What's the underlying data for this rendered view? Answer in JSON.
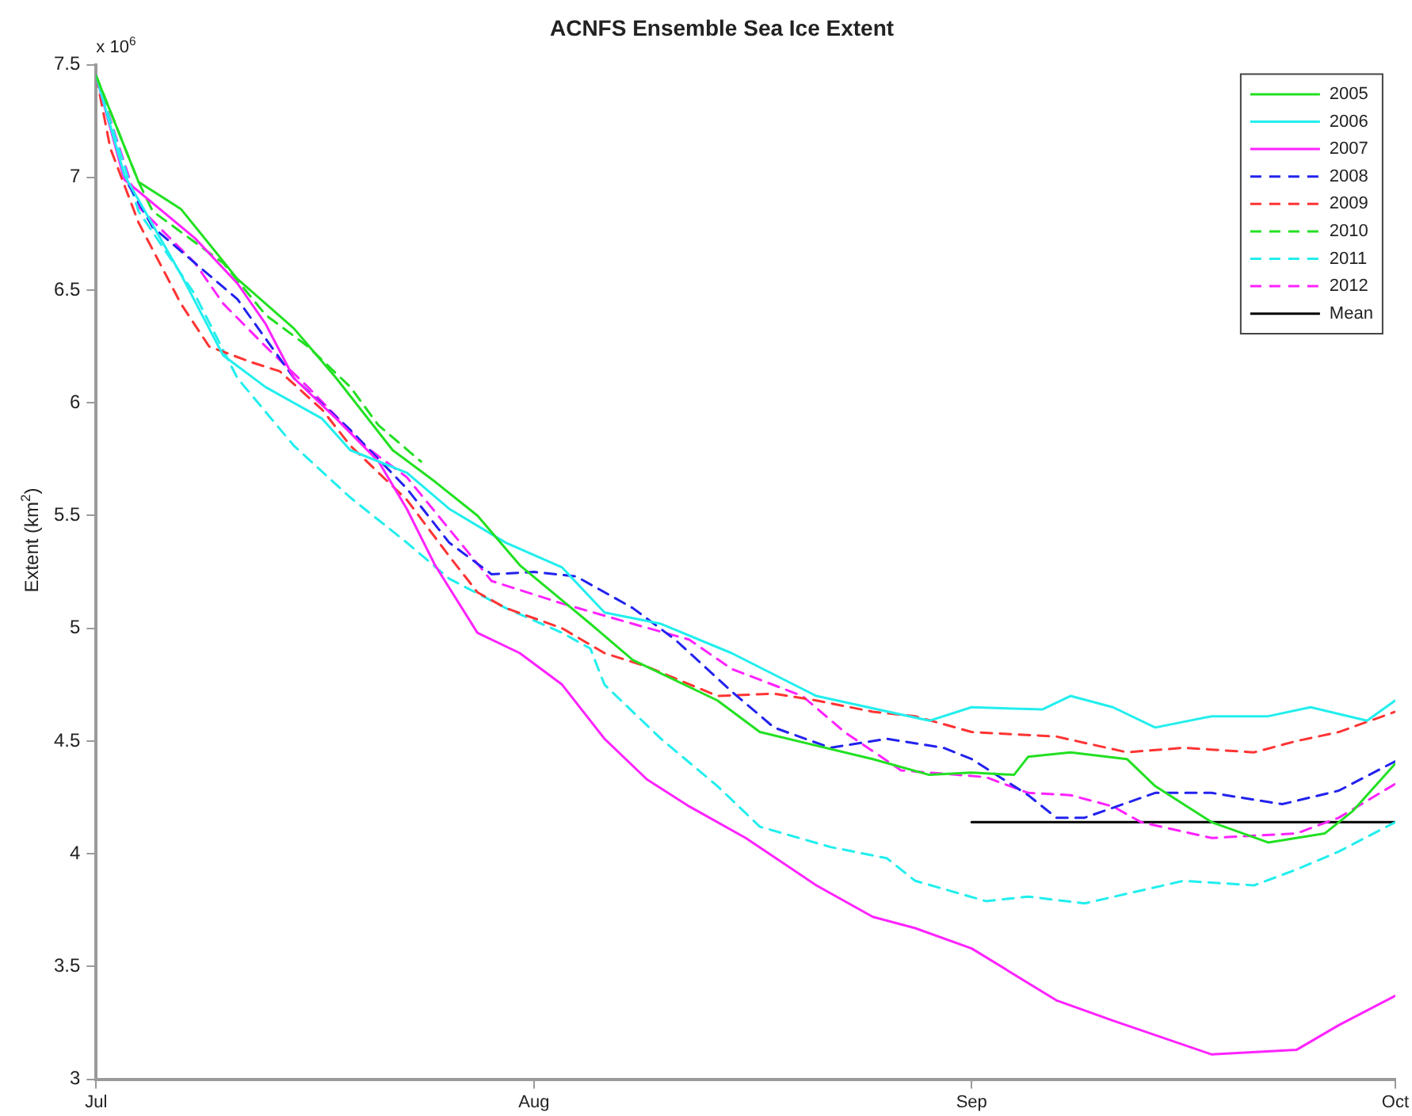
{
  "chart_data": {
    "type": "line",
    "title": "ACNFS Ensemble Sea Ice Extent",
    "ylabel": "Extent (km$^{2}$)",
    "annotations": [
      "x 10$^{6}$"
    ],
    "xlim": [
      "--07-01",
      "--10-01"
    ],
    "xticks": [
      {
        "value": "--07-01",
        "label": "Jul"
      },
      {
        "value": "--08-01",
        "label": "Aug"
      },
      {
        "value": "--09-01",
        "label": "Sep"
      },
      {
        "value": "--10-01",
        "label": "Oct"
      }
    ],
    "ylim": [
      3,
      7.5
    ],
    "yticks": [
      3,
      3.5,
      4,
      4.5,
      5,
      5.5,
      6,
      6.5,
      7,
      7.5
    ],
    "legend": "top right",
    "marker": "none",
    "series": [
      {
        "name": "2005",
        "color": "#22e022",
        "line_style": "solid",
        "x": [
          "--07-01",
          "--07-04",
          "--07-07",
          "--07-11",
          "--07-15",
          "--07-18",
          "--07-22",
          "--07-25",
          "--07-28",
          "--07-31",
          "--08-05",
          "--08-08",
          "--08-14",
          "--08-17",
          "--08-25",
          "--08-29",
          "--09-01",
          "--09-04",
          "--09-05",
          "--09-08",
          "--09-12",
          "--09-14",
          "--09-18",
          "--09-22",
          "--09-26",
          "--09-28",
          "--10-01"
        ],
        "values": [
          7.45,
          6.98,
          6.86,
          6.55,
          6.33,
          6.11,
          5.79,
          5.65,
          5.5,
          5.28,
          5.02,
          4.86,
          4.68,
          4.54,
          4.42,
          4.35,
          4.36,
          4.35,
          4.43,
          4.45,
          4.42,
          4.3,
          4.14,
          4.05,
          4.09,
          4.19,
          4.4
        ]
      },
      {
        "name": "2006",
        "color": "#22eeee",
        "line_style": "solid",
        "x": [
          "--07-01",
          "--07-03",
          "--07-07",
          "--07-10",
          "--07-13",
          "--07-17",
          "--07-19",
          "--07-23",
          "--07-26",
          "--07-30",
          "--08-03",
          "--08-06",
          "--08-10",
          "--08-15",
          "--08-21",
          "--08-29",
          "--09-01",
          "--09-06",
          "--09-08",
          "--09-11",
          "--09-14",
          "--09-18",
          "--09-22",
          "--09-25",
          "--09-29",
          "--10-01"
        ],
        "values": [
          7.45,
          7.01,
          6.57,
          6.21,
          6.07,
          5.93,
          5.79,
          5.69,
          5.53,
          5.38,
          5.27,
          5.07,
          5.02,
          4.89,
          4.7,
          4.59,
          4.65,
          4.64,
          4.7,
          4.65,
          4.56,
          4.61,
          4.61,
          4.65,
          4.59,
          4.68
        ]
      },
      {
        "name": "2007",
        "color": "#ff22ff",
        "line_style": "solid",
        "x": [
          "--07-01",
          "--07-03",
          "--07-08",
          "--07-11",
          "--07-13",
          "--07-15",
          "--07-18",
          "--07-21",
          "--07-23",
          "--07-25",
          "--07-28",
          "--07-31",
          "--08-03",
          "--08-06",
          "--08-09",
          "--08-12",
          "--08-16",
          "--08-21",
          "--08-25",
          "--08-28",
          "--09-01",
          "--09-07",
          "--09-11",
          "--09-18",
          "--09-24",
          "--09-27",
          "--10-01"
        ],
        "values": [
          7.45,
          6.99,
          6.73,
          6.53,
          6.35,
          6.11,
          5.93,
          5.74,
          5.53,
          5.28,
          4.98,
          4.89,
          4.75,
          4.51,
          4.33,
          4.21,
          4.07,
          3.86,
          3.72,
          3.67,
          3.58,
          3.35,
          3.26,
          3.11,
          3.13,
          3.24,
          3.37
        ]
      },
      {
        "name": "2008",
        "color": "#2222ee",
        "line_style": "dashed",
        "x": [
          "--07-01",
          "--07-03",
          "--07-05",
          "--07-11",
          "--07-15",
          "--07-19",
          "--07-23",
          "--07-26",
          "--07-29",
          "--08-01",
          "--08-04",
          "--08-08",
          "--08-11",
          "--08-15",
          "--08-18",
          "--08-22",
          "--08-26",
          "--08-30",
          "--09-01",
          "--09-05",
          "--09-07",
          "--09-09",
          "--09-14",
          "--09-18",
          "--09-23",
          "--09-27",
          "--10-01"
        ],
        "values": [
          7.45,
          7.0,
          6.78,
          6.46,
          6.11,
          5.88,
          5.62,
          5.38,
          5.24,
          5.25,
          5.23,
          5.09,
          4.95,
          4.72,
          4.56,
          4.47,
          4.51,
          4.47,
          4.42,
          4.26,
          4.16,
          4.16,
          4.27,
          4.27,
          4.22,
          4.28,
          4.41
        ]
      },
      {
        "name": "2009",
        "color": "#ff3333",
        "line_style": "dashed",
        "x": [
          "--07-01",
          "--07-02",
          "--07-04",
          "--07-07",
          "--07-09",
          "--07-12",
          "--07-14",
          "--07-17",
          "--07-19",
          "--07-23",
          "--07-26",
          "--07-28",
          "--07-30",
          "--08-03",
          "--08-06",
          "--08-09",
          "--08-14",
          "--08-18",
          "--08-21",
          "--08-25",
          "--08-28",
          "--09-01",
          "--09-07",
          "--09-12",
          "--09-16",
          "--09-21",
          "--09-24",
          "--09-27",
          "--10-01"
        ],
        "values": [
          7.45,
          7.13,
          6.8,
          6.44,
          6.25,
          6.18,
          6.14,
          5.97,
          5.81,
          5.57,
          5.32,
          5.16,
          5.09,
          5.0,
          4.89,
          4.83,
          4.7,
          4.71,
          4.68,
          4.63,
          4.61,
          4.54,
          4.52,
          4.45,
          4.47,
          4.45,
          4.5,
          4.54,
          4.63
        ]
      },
      {
        "name": "2010",
        "color": "#22e022",
        "line_style": "dashed",
        "x": [
          "--07-01",
          "--07-04",
          "--07-05",
          "--07-10",
          "--07-13",
          "--07-16",
          "--07-19",
          "--07-21",
          "--07-24"
        ],
        "values": [
          7.45,
          6.98,
          6.85,
          6.62,
          6.39,
          6.25,
          6.07,
          5.9,
          5.74
        ]
      },
      {
        "name": "2011",
        "color": "#22eeee",
        "line_style": "dashed",
        "x": [
          "--07-01",
          "--07-04",
          "--07-08",
          "--07-11",
          "--07-15",
          "--07-19",
          "--07-23",
          "--07-26",
          "--07-30",
          "--08-03",
          "--08-05",
          "--08-06",
          "--08-10",
          "--08-14",
          "--08-17",
          "--08-22",
          "--08-26",
          "--08-28",
          "--09-02",
          "--09-05",
          "--09-09",
          "--09-16",
          "--09-21",
          "--09-24",
          "--09-27",
          "--10-01"
        ],
        "values": [
          7.45,
          6.85,
          6.48,
          6.11,
          5.81,
          5.58,
          5.38,
          5.22,
          5.09,
          4.98,
          4.91,
          4.75,
          4.51,
          4.3,
          4.12,
          4.03,
          3.98,
          3.88,
          3.79,
          3.81,
          3.78,
          3.88,
          3.86,
          3.93,
          4.01,
          4.14
        ]
      },
      {
        "name": "2012",
        "color": "#ff22ff",
        "line_style": "dashed",
        "x": [
          "--07-01",
          "--07-04",
          "--07-08",
          "--07-10",
          "--07-13",
          "--07-16",
          "--07-20",
          "--07-23",
          "--07-26",
          "--07-29",
          "--08-03",
          "--08-08",
          "--08-12",
          "--08-15",
          "--08-20",
          "--08-23",
          "--08-27",
          "--08-31",
          "--09-02",
          "--09-05",
          "--09-08",
          "--09-11",
          "--09-13",
          "--09-18",
          "--09-24",
          "--09-27",
          "--10-01"
        ],
        "values": [
          7.45,
          6.87,
          6.62,
          6.44,
          6.25,
          6.07,
          5.81,
          5.67,
          5.44,
          5.21,
          5.11,
          5.02,
          4.95,
          4.82,
          4.7,
          4.54,
          4.37,
          4.35,
          4.34,
          4.27,
          4.26,
          4.21,
          4.14,
          4.07,
          4.09,
          4.16,
          4.31
        ]
      },
      {
        "name": "Mean",
        "color": "#000000",
        "line_style": "solid",
        "x": [
          "--09-01",
          "--10-01"
        ],
        "values": [
          4.14,
          4.14
        ]
      }
    ]
  }
}
